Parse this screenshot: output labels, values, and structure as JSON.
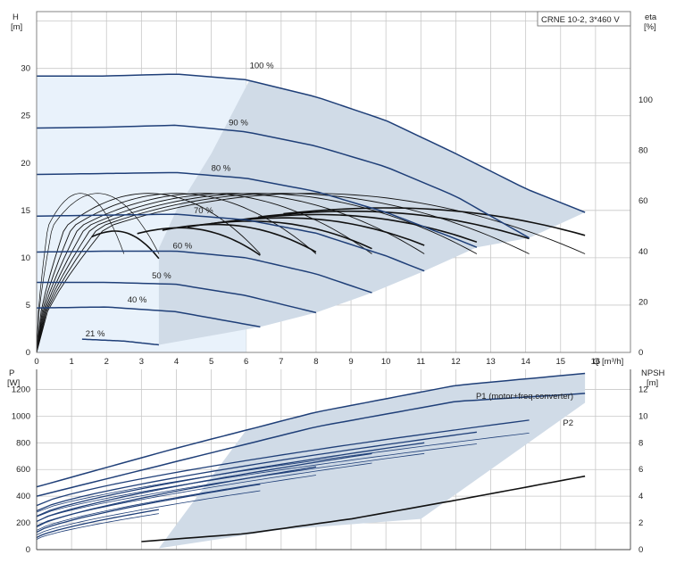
{
  "title_box": "CRNE 10-2, 3*460 V",
  "colors": {
    "curve": "#1f3f78",
    "envelope": "#d0dbe7",
    "low_region": "#e9f2fb",
    "eff": "#111111",
    "p1_label": "#2a5fa8"
  },
  "top": {
    "y_left_label": "H",
    "y_left_unit": "[m]",
    "y_right_label": "eta",
    "y_right_unit": "[%]",
    "x_label": "Q [m³/h]",
    "y_left_ticks": [
      "0",
      "5",
      "10",
      "15",
      "20",
      "25",
      "30"
    ],
    "y_right_ticks": [
      "0",
      "20",
      "40",
      "60",
      "80",
      "100"
    ],
    "x_ticks": [
      "0",
      "1",
      "2",
      "3",
      "4",
      "5",
      "6",
      "7",
      "8",
      "9",
      "10",
      "11",
      "12",
      "13",
      "14",
      "15",
      "16"
    ]
  },
  "bottom": {
    "y_left_label": "P",
    "y_left_unit": "[W]",
    "y_right_label": "NPSH",
    "y_right_unit": "[m]",
    "y_left_ticks": [
      "0",
      "200",
      "400",
      "600",
      "800",
      "1000",
      "1200"
    ],
    "y_right_ticks": [
      "0",
      "2",
      "4",
      "6",
      "8",
      "10",
      "12"
    ],
    "series_labels": [
      "P1 (motor+freq.converter)",
      "P2"
    ]
  },
  "chart_data": [
    {
      "type": "line",
      "title": "CRNE 10-2, 3*460 V",
      "xlabel": "Q [m³/h]",
      "ylabel": "H [m]",
      "y2label": "eta [%]",
      "xlim": [
        0,
        17
      ],
      "ylim": [
        0,
        36
      ],
      "y2lim": [
        0,
        135
      ],
      "grid": true,
      "head_curves": [
        {
          "name": "100 %",
          "label_pos": [
            6.1,
            30.0
          ],
          "x": [
            0,
            2,
            4,
            6,
            8,
            10,
            12,
            14,
            15.7
          ],
          "y": [
            29.2,
            29.2,
            29.4,
            28.8,
            27.0,
            24.5,
            21.0,
            17.3,
            14.8
          ]
        },
        {
          "name": "90 %",
          "label_pos": [
            5.5,
            24.0
          ],
          "x": [
            0,
            2,
            4,
            6,
            8,
            10,
            12,
            14.1
          ],
          "y": [
            23.7,
            23.8,
            24.0,
            23.3,
            21.8,
            19.6,
            16.5,
            12.1
          ]
        },
        {
          "name": "80 %",
          "label_pos": [
            5.0,
            19.2
          ],
          "x": [
            0,
            2,
            4,
            6,
            8,
            10,
            12,
            12.6
          ],
          "y": [
            18.8,
            18.9,
            19.0,
            18.4,
            17.0,
            14.8,
            12.0,
            11.1
          ]
        },
        {
          "name": "70 %",
          "label_pos": [
            4.5,
            14.7
          ],
          "x": [
            0,
            2,
            4,
            6,
            8,
            10,
            11.1
          ],
          "y": [
            14.4,
            14.5,
            14.6,
            14.0,
            12.6,
            10.2,
            8.6
          ]
        },
        {
          "name": "60 %",
          "label_pos": [
            3.9,
            11.0
          ],
          "x": [
            0,
            2,
            4,
            6,
            8,
            9.6
          ],
          "y": [
            10.6,
            10.7,
            10.7,
            10.0,
            8.3,
            6.3
          ]
        },
        {
          "name": "50 %",
          "label_pos": [
            3.3,
            7.8
          ],
          "x": [
            0,
            2,
            4,
            6,
            8
          ],
          "y": [
            7.4,
            7.4,
            7.2,
            6.0,
            4.2
          ]
        },
        {
          "name": "40 %",
          "label_pos": [
            2.6,
            5.3
          ],
          "x": [
            0,
            2,
            4,
            6.4
          ],
          "y": [
            4.7,
            4.8,
            4.3,
            2.7
          ]
        },
        {
          "name": "21 %",
          "label_pos": [
            1.4,
            1.7
          ],
          "x": [
            1.3,
            2.5,
            3.5
          ],
          "y": [
            1.4,
            1.2,
            0.8
          ]
        }
      ],
      "efficiency_curves": {
        "ends_x": [
          2.5,
          3.5,
          6.4,
          8.0,
          9.6,
          11.1,
          12.6,
          14.1,
          15.7
        ],
        "peak_percent": 63
      }
    },
    {
      "type": "line",
      "xlabel": "Q [m³/h]",
      "ylabel": "P [W]",
      "y2label": "NPSH [m]",
      "xlim": [
        0,
        17
      ],
      "ylim": [
        0,
        1350
      ],
      "y2lim": [
        0,
        13.5
      ],
      "grid": true,
      "series": [
        {
          "name": "P1 (motor+freq.converter)",
          "x": [
            0,
            4,
            8,
            12,
            15.7
          ],
          "y": [
            470,
            760,
            1030,
            1230,
            1320
          ]
        },
        {
          "name": "P2",
          "x": [
            0,
            4,
            8,
            12,
            15.7
          ],
          "y": [
            400,
            660,
            920,
            1110,
            1170
          ]
        }
      ],
      "npsh": {
        "x": [
          3,
          6,
          9,
          12,
          15.7
        ],
        "y": [
          0.6,
          1.2,
          2.3,
          3.7,
          5.5
        ]
      }
    }
  ]
}
